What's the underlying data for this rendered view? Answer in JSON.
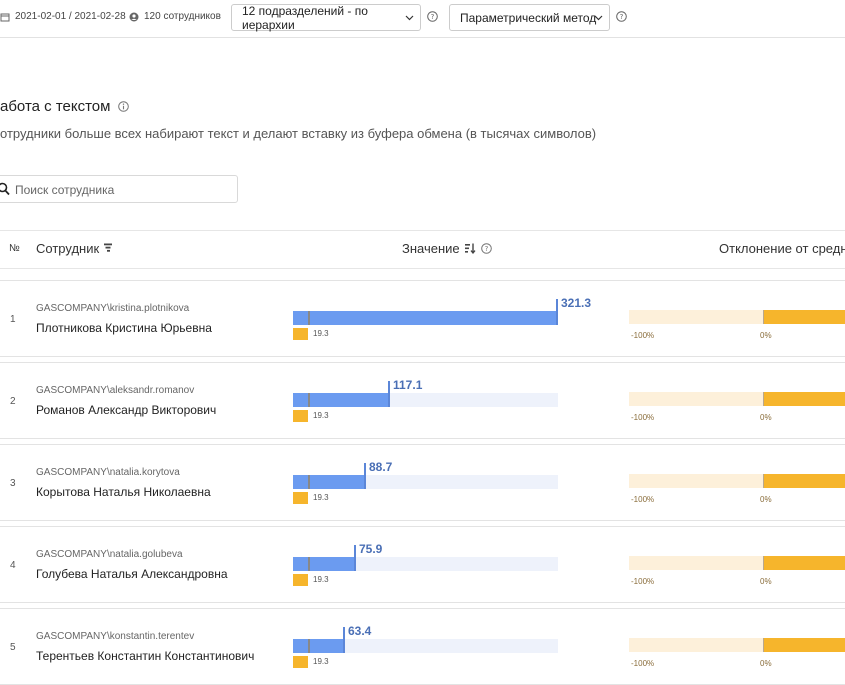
{
  "toolbar": {
    "date_range": "2021-02-01 / 2021-02-28",
    "employee_count": "120 сотрудников",
    "department_select": "12 подразделений - по иерархии",
    "method_select": "Параметрический метод"
  },
  "page": {
    "title": "абота с текстом",
    "subtitle": "отрудники больше всех набирают текст и делают вставку из буфера обмена (в тысячах символов)",
    "search_placeholder": "Поиск сотрудника"
  },
  "table": {
    "col_number": "№",
    "col_employee": "Сотрудник",
    "col_value": "Значение",
    "col_deviation": "Отклонение от средне"
  },
  "benchmark": "19.3",
  "deviation_labels": {
    "min": "-100%",
    "zero": "0%"
  },
  "colors": {
    "accent_blue": "#6b9bf0",
    "accent_orange": "#f6b52c"
  },
  "rows": [
    {
      "num": "1",
      "login": "GASCOMPANY\\kristina.plotnikova",
      "name": "Плотникова Кристина Юрьевна",
      "value": "321.3"
    },
    {
      "num": "2",
      "login": "GASCOMPANY\\aleksandr.romanov",
      "name": "Романов Александр Викторович",
      "value": "117.1"
    },
    {
      "num": "3",
      "login": "GASCOMPANY\\natalia.korytova",
      "name": "Корытова Наталья Николаевна",
      "value": "88.7"
    },
    {
      "num": "4",
      "login": "GASCOMPANY\\natalia.golubeva",
      "name": "Голубева Наталья Александровна",
      "value": "75.9"
    },
    {
      "num": "5",
      "login": "GASCOMPANY\\konstantin.terentev",
      "name": "Терентьев Константин Константинович",
      "value": "63.4"
    }
  ]
}
